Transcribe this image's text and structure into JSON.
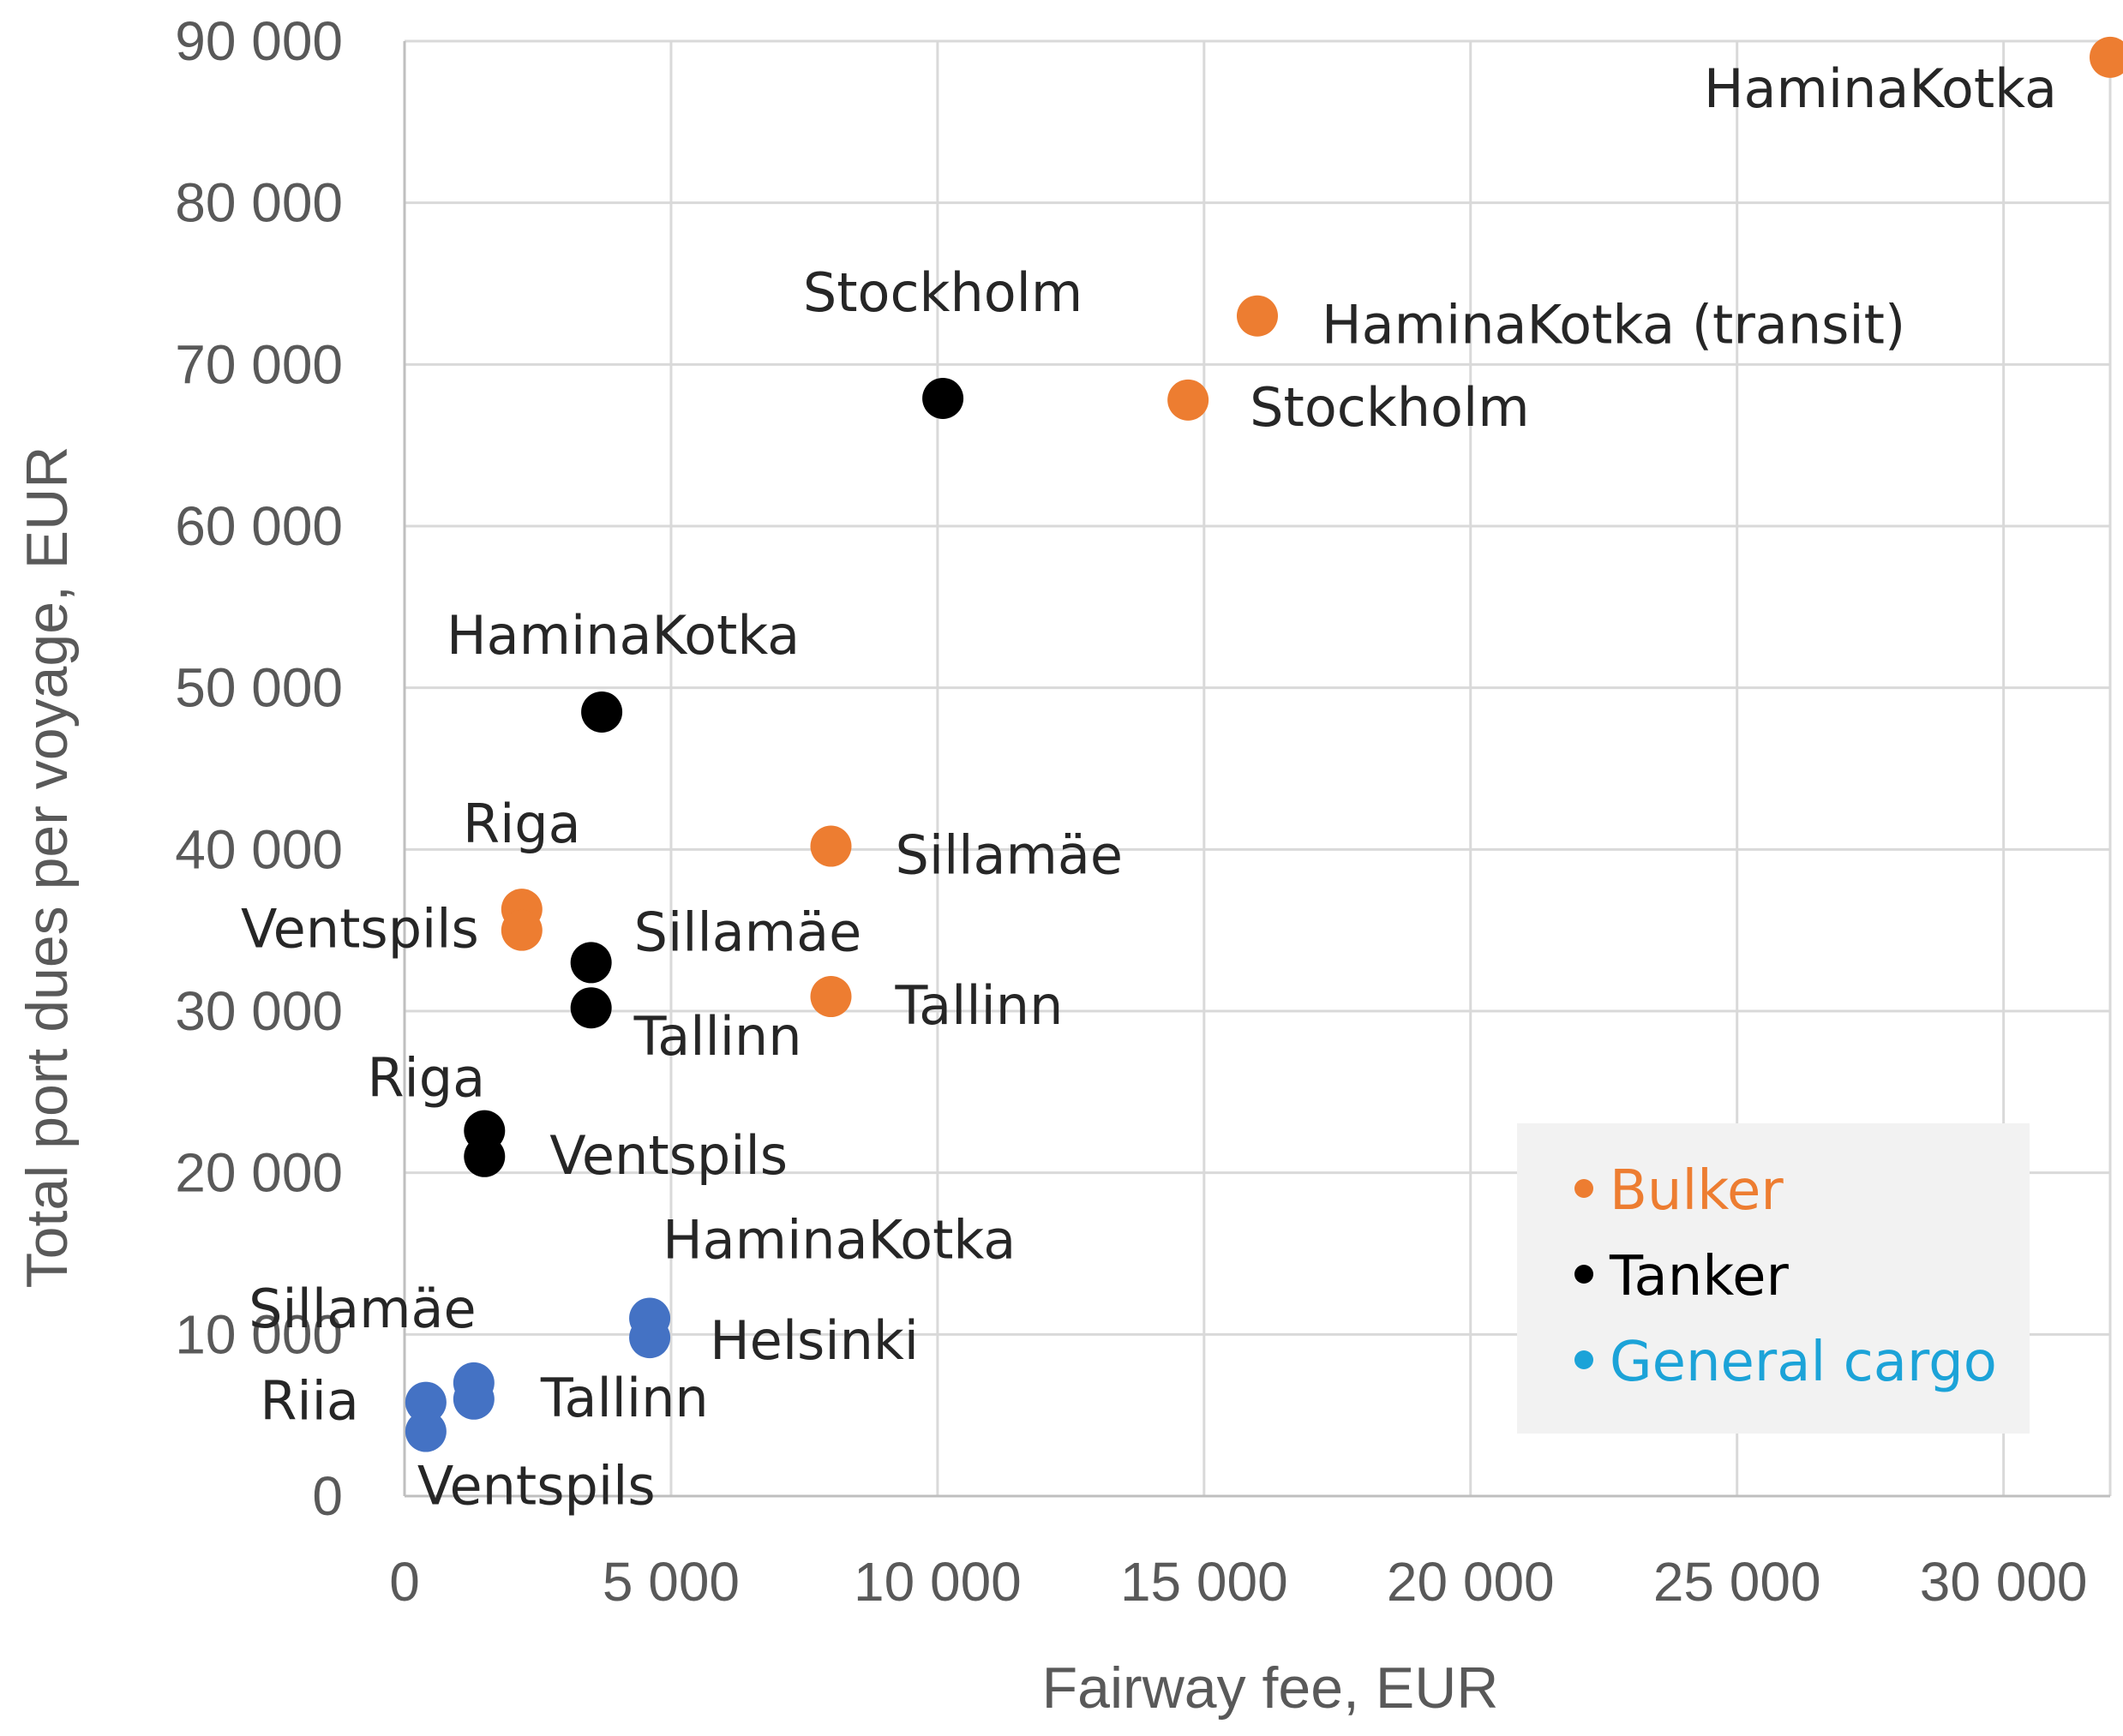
{
  "chart_data": {
    "type": "scatter",
    "title": "",
    "xlabel": "Fairway fee, EUR",
    "ylabel": "Total port dues per voyage, EUR",
    "xlim": [
      0,
      32000
    ],
    "ylim": [
      0,
      90000
    ],
    "x_ticks": [
      "0",
      "5 000",
      "10 000",
      "15 000",
      "20 000",
      "25 000",
      "30 000"
    ],
    "y_ticks": [
      "0",
      "10 000",
      "20 000",
      "30 000",
      "40 000",
      "50 000",
      "60 000",
      "70 000",
      "80 000",
      "90 000"
    ],
    "grid": true,
    "legend_position": "bottom-right",
    "series": [
      {
        "name": "Bulker",
        "color": "#ED7D31",
        "legend_text_color": "#ED7D31",
        "points": [
          {
            "x": 32000,
            "y": 89000,
            "label": "HaminaKotka"
          },
          {
            "x": 16000,
            "y": 73000,
            "label": "HaminaKotka (transit)"
          },
          {
            "x": 14700,
            "y": 67800,
            "label": "Stockholm"
          },
          {
            "x": 8000,
            "y": 40200,
            "label": "Sillamäe"
          },
          {
            "x": 8000,
            "y": 30900,
            "label": "Tallinn"
          },
          {
            "x": 2200,
            "y": 36300,
            "label": "Riga"
          },
          {
            "x": 2200,
            "y": 35000,
            "label": "Ventspils"
          }
        ]
      },
      {
        "name": "Tanker",
        "color": "#000000",
        "legend_text_color": "#000000",
        "points": [
          {
            "x": 10100,
            "y": 67900,
            "label": "Stockholm"
          },
          {
            "x": 3700,
            "y": 48500,
            "label": "HaminaKotka"
          },
          {
            "x": 3500,
            "y": 33000,
            "label": "Sillamäe"
          },
          {
            "x": 3500,
            "y": 30200,
            "label": "Tallinn"
          },
          {
            "x": 1500,
            "y": 22600,
            "label": "Riga"
          },
          {
            "x": 1500,
            "y": 21000,
            "label": "Ventspils"
          }
        ]
      },
      {
        "name": "General cargo",
        "color": "#4472C4",
        "legend_text_color": "#1CA3D8",
        "points": [
          {
            "x": 4600,
            "y": 11000,
            "label": "HaminaKotka"
          },
          {
            "x": 4600,
            "y": 9800,
            "label": "Helsinki"
          },
          {
            "x": 1300,
            "y": 7000,
            "label": "Sillamäe"
          },
          {
            "x": 1300,
            "y": 6000,
            "label": "Tallinn"
          },
          {
            "x": 400,
            "y": 5800,
            "label": "Riia"
          },
          {
            "x": 400,
            "y": 4000,
            "label": "Ventspils"
          }
        ]
      }
    ]
  }
}
